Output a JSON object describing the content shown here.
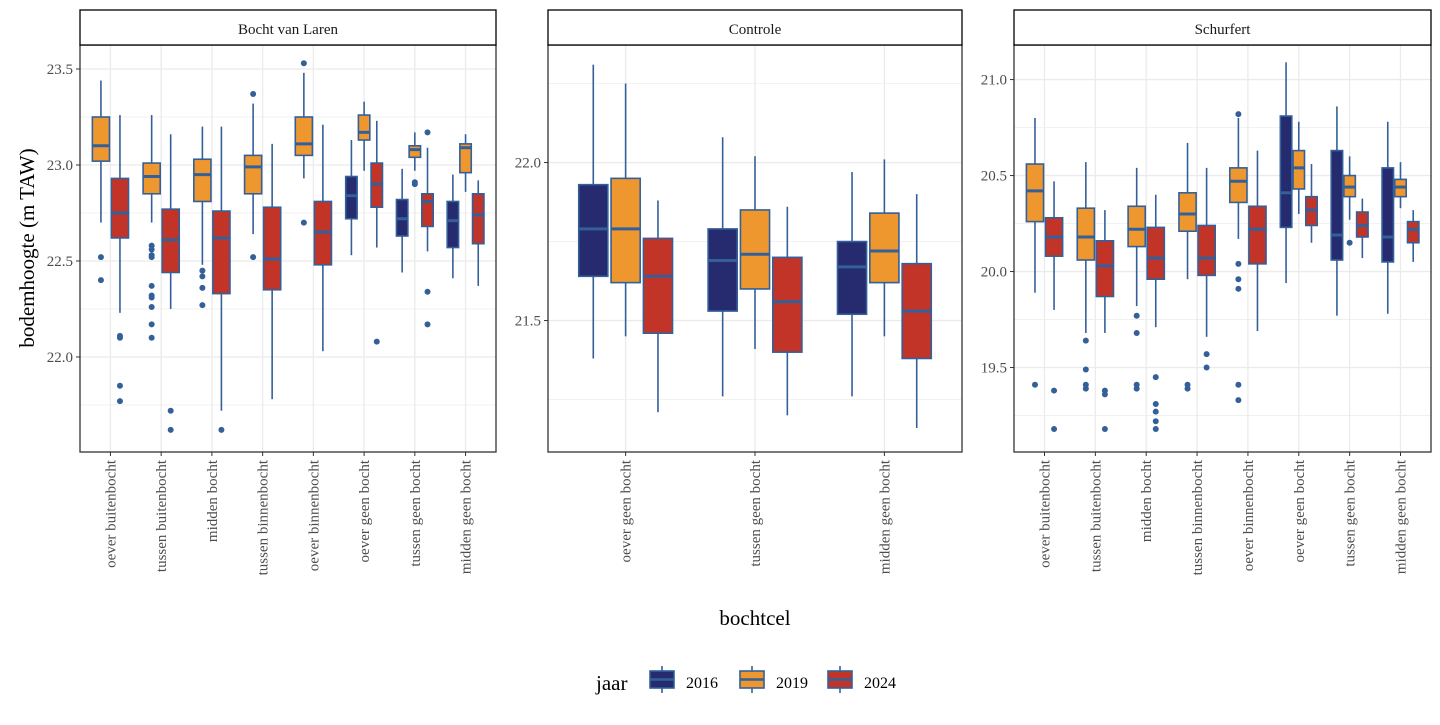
{
  "chart_data": {
    "type": "boxplot",
    "xlabel": "bochtcel",
    "ylabel": "bodemhoogte (m TAW)",
    "grid": true,
    "facet_scales": "free",
    "legend": {
      "title": "jaar",
      "position": "bottom",
      "entries": [
        "2016",
        "2019",
        "2024"
      ]
    },
    "colors": {
      "2016": "#262a6e",
      "2019": "#ee972e",
      "2024": "#c33428",
      "outline": "#34609a",
      "grid": "#ebebeb"
    },
    "panels": [
      {
        "title": "Bocht van Laren",
        "ylim": [
          21.505,
          23.625
        ],
        "yticks": [
          "22.0",
          "22.5",
          "23.0",
          "23.5"
        ],
        "categories": [
          {
            "label": "oever buitenbocht",
            "boxes": [
              {
                "jaar": "2019",
                "min": 22.7,
                "q1": 23.02,
                "median": 23.1,
                "q3": 23.25,
                "max": 23.44,
                "outliers": [
                  22.52,
                  22.4
                ]
              },
              {
                "jaar": "2024",
                "min": 22.23,
                "q1": 22.62,
                "median": 22.75,
                "q3": 22.93,
                "max": 23.26,
                "outliers": [
                  22.11,
                  22.1,
                  21.85,
                  21.77
                ]
              }
            ]
          },
          {
            "label": "tussen buitenbocht",
            "boxes": [
              {
                "jaar": "2019",
                "min": 22.7,
                "q1": 22.85,
                "median": 22.94,
                "q3": 23.01,
                "max": 23.26,
                "outliers": [
                  22.58,
                  22.56,
                  22.53,
                  22.52,
                  22.37,
                  22.32,
                  22.31,
                  22.26,
                  22.17,
                  22.1
                ]
              },
              {
                "jaar": "2024",
                "min": 22.25,
                "q1": 22.44,
                "median": 22.61,
                "q3": 22.77,
                "max": 23.16,
                "outliers": [
                  21.72,
                  21.62
                ]
              }
            ]
          },
          {
            "label": "midden bocht",
            "boxes": [
              {
                "jaar": "2019",
                "min": 22.48,
                "q1": 22.81,
                "median": 22.95,
                "q3": 23.03,
                "max": 23.2,
                "outliers": [
                  22.45,
                  22.42,
                  22.36,
                  22.27
                ]
              },
              {
                "jaar": "2024",
                "min": 21.72,
                "q1": 22.33,
                "median": 22.62,
                "q3": 22.76,
                "max": 23.2,
                "outliers": [
                  21.62
                ]
              }
            ]
          },
          {
            "label": "tussen binnenbocht",
            "boxes": [
              {
                "jaar": "2019",
                "min": 22.64,
                "q1": 22.85,
                "median": 22.99,
                "q3": 23.05,
                "max": 23.32,
                "outliers": [
                  23.37,
                  22.52
                ]
              },
              {
                "jaar": "2024",
                "min": 21.78,
                "q1": 22.35,
                "median": 22.51,
                "q3": 22.78,
                "max": 23.11,
                "outliers": []
              }
            ]
          },
          {
            "label": "oever binnenbocht",
            "boxes": [
              {
                "jaar": "2019",
                "min": 22.93,
                "q1": 23.05,
                "median": 23.11,
                "q3": 23.25,
                "max": 23.48,
                "outliers": [
                  23.53,
                  22.7
                ]
              },
              {
                "jaar": "2024",
                "min": 22.03,
                "q1": 22.48,
                "median": 22.65,
                "q3": 22.81,
                "max": 23.21,
                "outliers": []
              }
            ]
          },
          {
            "label": "oever geen bocht",
            "boxes": [
              {
                "jaar": "2016",
                "min": 22.53,
                "q1": 22.72,
                "median": 22.84,
                "q3": 22.94,
                "max": 23.13,
                "outliers": []
              },
              {
                "jaar": "2019",
                "min": 22.97,
                "q1": 23.13,
                "median": 23.17,
                "q3": 23.26,
                "max": 23.33,
                "outliers": []
              },
              {
                "jaar": "2024",
                "min": 22.57,
                "q1": 22.78,
                "median": 22.9,
                "q3": 23.01,
                "max": 23.23,
                "outliers": [
                  22.08
                ]
              }
            ]
          },
          {
            "label": "tussen geen bocht",
            "boxes": [
              {
                "jaar": "2016",
                "min": 22.44,
                "q1": 22.63,
                "median": 22.72,
                "q3": 22.82,
                "max": 22.98,
                "outliers": []
              },
              {
                "jaar": "2019",
                "min": 22.97,
                "q1": 23.04,
                "median": 23.08,
                "q3": 23.1,
                "max": 23.17,
                "outliers": [
                  22.91,
                  22.9
                ]
              },
              {
                "jaar": "2024",
                "min": 22.55,
                "q1": 22.68,
                "median": 22.81,
                "q3": 22.85,
                "max": 23.09,
                "outliers": [
                  23.17,
                  22.34,
                  22.17
                ]
              }
            ]
          },
          {
            "label": "midden geen bocht",
            "boxes": [
              {
                "jaar": "2016",
                "min": 22.41,
                "q1": 22.57,
                "median": 22.71,
                "q3": 22.81,
                "max": 22.95,
                "outliers": []
              },
              {
                "jaar": "2019",
                "min": 22.86,
                "q1": 22.96,
                "median": 23.09,
                "q3": 23.11,
                "max": 23.16,
                "outliers": []
              },
              {
                "jaar": "2024",
                "min": 22.37,
                "q1": 22.59,
                "median": 22.74,
                "q3": 22.85,
                "max": 22.92,
                "outliers": []
              }
            ]
          }
        ]
      },
      {
        "title": "Controle",
        "ylim": [
          21.084,
          22.372
        ],
        "yticks": [
          "21.5",
          "22.0"
        ],
        "categories": [
          {
            "label": "oever geen bocht",
            "boxes": [
              {
                "jaar": "2016",
                "min": 21.38,
                "q1": 21.64,
                "median": 21.79,
                "q3": 21.93,
                "max": 22.31,
                "outliers": []
              },
              {
                "jaar": "2019",
                "min": 21.45,
                "q1": 21.62,
                "median": 21.79,
                "q3": 21.95,
                "max": 22.25,
                "outliers": []
              },
              {
                "jaar": "2024",
                "min": 21.21,
                "q1": 21.46,
                "median": 21.64,
                "q3": 21.76,
                "max": 21.88,
                "outliers": []
              }
            ]
          },
          {
            "label": "tussen geen bocht",
            "boxes": [
              {
                "jaar": "2016",
                "min": 21.26,
                "q1": 21.53,
                "median": 21.69,
                "q3": 21.79,
                "max": 22.08,
                "outliers": []
              },
              {
                "jaar": "2019",
                "min": 21.41,
                "q1": 21.6,
                "median": 21.71,
                "q3": 21.85,
                "max": 22.02,
                "outliers": []
              },
              {
                "jaar": "2024",
                "min": 21.2,
                "q1": 21.4,
                "median": 21.56,
                "q3": 21.7,
                "max": 21.86,
                "outliers": []
              }
            ]
          },
          {
            "label": "midden geen bocht",
            "boxes": [
              {
                "jaar": "2016",
                "min": 21.26,
                "q1": 21.52,
                "median": 21.67,
                "q3": 21.75,
                "max": 21.97,
                "outliers": []
              },
              {
                "jaar": "2019",
                "min": 21.45,
                "q1": 21.62,
                "median": 21.72,
                "q3": 21.84,
                "max": 22.01,
                "outliers": []
              },
              {
                "jaar": "2024",
                "min": 21.16,
                "q1": 21.38,
                "median": 21.53,
                "q3": 21.68,
                "max": 21.9,
                "outliers": []
              }
            ]
          }
        ]
      },
      {
        "title": "Schurfert",
        "ylim": [
          19.06,
          21.18
        ],
        "yticks": [
          "19.5",
          "20.0",
          "20.5",
          "21.0"
        ],
        "categories": [
          {
            "label": "oever buitenbocht",
            "boxes": [
              {
                "jaar": "2019",
                "min": 19.89,
                "q1": 20.26,
                "median": 20.42,
                "q3": 20.56,
                "max": 20.8,
                "outliers": [
                  19.41
                ]
              },
              {
                "jaar": "2024",
                "min": 19.8,
                "q1": 20.08,
                "median": 20.18,
                "q3": 20.28,
                "max": 20.47,
                "outliers": [
                  19.38,
                  19.18
                ]
              }
            ]
          },
          {
            "label": "tussen buitenbocht",
            "boxes": [
              {
                "jaar": "2019",
                "min": 19.68,
                "q1": 20.06,
                "median": 20.18,
                "q3": 20.33,
                "max": 20.57,
                "outliers": [
                  19.64,
                  19.49,
                  19.41,
                  19.39
                ]
              },
              {
                "jaar": "2024",
                "min": 19.68,
                "q1": 19.87,
                "median": 20.03,
                "q3": 20.16,
                "max": 20.32,
                "outliers": [
                  19.38,
                  19.36,
                  19.18
                ]
              }
            ]
          },
          {
            "label": "midden bocht",
            "boxes": [
              {
                "jaar": "2019",
                "min": 19.82,
                "q1": 20.13,
                "median": 20.22,
                "q3": 20.34,
                "max": 20.54,
                "outliers": [
                  19.77,
                  19.68,
                  19.41,
                  19.39
                ]
              },
              {
                "jaar": "2024",
                "min": 19.71,
                "q1": 19.96,
                "median": 20.07,
                "q3": 20.23,
                "max": 20.4,
                "outliers": [
                  19.45,
                  19.31,
                  19.27,
                  19.22,
                  19.18
                ]
              }
            ]
          },
          {
            "label": "tussen binnenbocht",
            "boxes": [
              {
                "jaar": "2019",
                "min": 19.96,
                "q1": 20.21,
                "median": 20.3,
                "q3": 20.41,
                "max": 20.67,
                "outliers": [
                  19.41,
                  19.39
                ]
              },
              {
                "jaar": "2024",
                "min": 19.66,
                "q1": 19.98,
                "median": 20.07,
                "q3": 20.24,
                "max": 20.54,
                "outliers": [
                  19.57,
                  19.5
                ]
              }
            ]
          },
          {
            "label": "oever binnenbocht",
            "boxes": [
              {
                "jaar": "2019",
                "min": 20.17,
                "q1": 20.36,
                "median": 20.47,
                "q3": 20.54,
                "max": 20.8,
                "outliers": [
                  20.82,
                  20.04,
                  19.96,
                  19.91,
                  19.41,
                  19.33
                ]
              },
              {
                "jaar": "2024",
                "min": 19.69,
                "q1": 20.04,
                "median": 20.22,
                "q3": 20.34,
                "max": 20.63,
                "outliers": []
              }
            ]
          },
          {
            "label": "oever geen bocht",
            "boxes": [
              {
                "jaar": "2016",
                "min": 19.94,
                "q1": 20.23,
                "median": 20.41,
                "q3": 20.81,
                "max": 21.09,
                "outliers": []
              },
              {
                "jaar": "2019",
                "min": 20.3,
                "q1": 20.43,
                "median": 20.54,
                "q3": 20.63,
                "max": 20.78,
                "outliers": []
              },
              {
                "jaar": "2024",
                "min": 20.15,
                "q1": 20.24,
                "median": 20.32,
                "q3": 20.39,
                "max": 20.56,
                "outliers": []
              }
            ]
          },
          {
            "label": "tussen geen bocht",
            "boxes": [
              {
                "jaar": "2016",
                "min": 19.77,
                "q1": 20.06,
                "median": 20.19,
                "q3": 20.63,
                "max": 20.86,
                "outliers": []
              },
              {
                "jaar": "2019",
                "min": 20.27,
                "q1": 20.39,
                "median": 20.44,
                "q3": 20.5,
                "max": 20.6,
                "outliers": [
                  20.15
                ]
              },
              {
                "jaar": "2024",
                "min": 20.07,
                "q1": 20.18,
                "median": 20.24,
                "q3": 20.31,
                "max": 20.38,
                "outliers": []
              }
            ]
          },
          {
            "label": "midden geen bocht",
            "boxes": [
              {
                "jaar": "2016",
                "min": 19.78,
                "q1": 20.05,
                "median": 20.18,
                "q3": 20.54,
                "max": 20.78,
                "outliers": []
              },
              {
                "jaar": "2019",
                "min": 20.33,
                "q1": 20.39,
                "median": 20.44,
                "q3": 20.48,
                "max": 20.57,
                "outliers": []
              },
              {
                "jaar": "2024",
                "min": 20.05,
                "q1": 20.15,
                "median": 20.22,
                "q3": 20.26,
                "max": 20.32,
                "outliers": []
              }
            ]
          }
        ]
      }
    ]
  }
}
